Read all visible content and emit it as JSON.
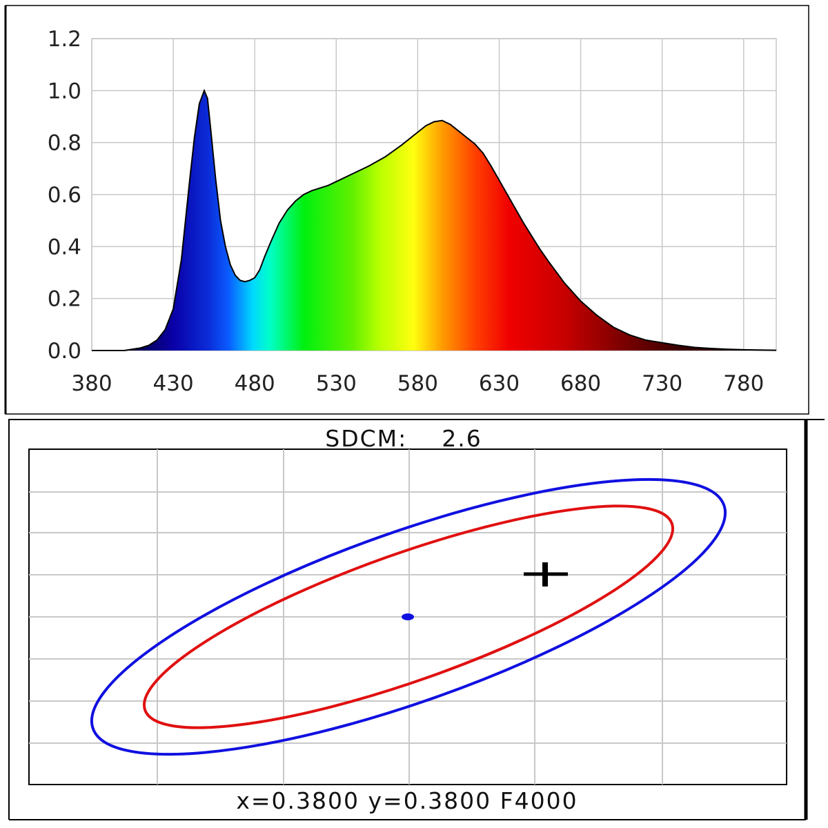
{
  "chart_data": [
    {
      "type": "area",
      "title": "",
      "xlabel": "",
      "ylabel": "",
      "xlim": [
        380,
        800
      ],
      "ylim": [
        0,
        1.2
      ],
      "grid": true,
      "x_ticks": [
        380,
        430,
        480,
        530,
        580,
        630,
        680,
        730,
        780
      ],
      "y_ticks": [
        "0.0",
        "0.2",
        "0.4",
        "0.6",
        "0.8",
        "1.0",
        "1.2"
      ],
      "fill": "visible-spectrum gradient",
      "series": [
        {
          "x": [
            380,
            400,
            405,
            410,
            415,
            420,
            425,
            430,
            435,
            440,
            443,
            446,
            449,
            451,
            453,
            456,
            459,
            462,
            465,
            468,
            471,
            474,
            477,
            480,
            483,
            486,
            490,
            495,
            500,
            505,
            510,
            515,
            520,
            525,
            530,
            540,
            550,
            560,
            570,
            580,
            585,
            590,
            595,
            600,
            605,
            610,
            615,
            620,
            625,
            630,
            635,
            640,
            645,
            650,
            655,
            660,
            670,
            680,
            690,
            700,
            710,
            720,
            725,
            730,
            740,
            750,
            760,
            770,
            780,
            790,
            800
          ],
          "y": [
            0.0,
            0.0,
            0.005,
            0.01,
            0.02,
            0.04,
            0.08,
            0.16,
            0.35,
            0.65,
            0.82,
            0.95,
            1.0,
            0.97,
            0.85,
            0.66,
            0.5,
            0.4,
            0.33,
            0.29,
            0.27,
            0.265,
            0.27,
            0.28,
            0.31,
            0.36,
            0.42,
            0.49,
            0.54,
            0.575,
            0.6,
            0.615,
            0.625,
            0.635,
            0.65,
            0.68,
            0.71,
            0.745,
            0.79,
            0.84,
            0.865,
            0.88,
            0.885,
            0.87,
            0.845,
            0.82,
            0.795,
            0.76,
            0.71,
            0.655,
            0.6,
            0.545,
            0.49,
            0.44,
            0.39,
            0.345,
            0.26,
            0.19,
            0.135,
            0.09,
            0.06,
            0.04,
            0.035,
            0.03,
            0.02,
            0.012,
            0.008,
            0.005,
            0.003,
            0.002,
            0.001
          ]
        }
      ]
    },
    {
      "type": "scatter",
      "title": "SDCM:    2.6",
      "xlabel": "x=0.3800 y=0.3800 F4000",
      "ylabel": "",
      "grid": true,
      "series": [
        {
          "name": "",
          "color": "#1010e0"
        },
        {
          "name": "",
          "color": "#e01010"
        }
      ],
      "markers": {
        "center_dot_color": "#1010e0",
        "measured_point_color": "#000000"
      }
    }
  ],
  "colors": {
    "outer_ellipse": "#1010e0",
    "inner_ellipse": "#e01010",
    "grid": "#c8c8c8",
    "frame": "#000000"
  }
}
